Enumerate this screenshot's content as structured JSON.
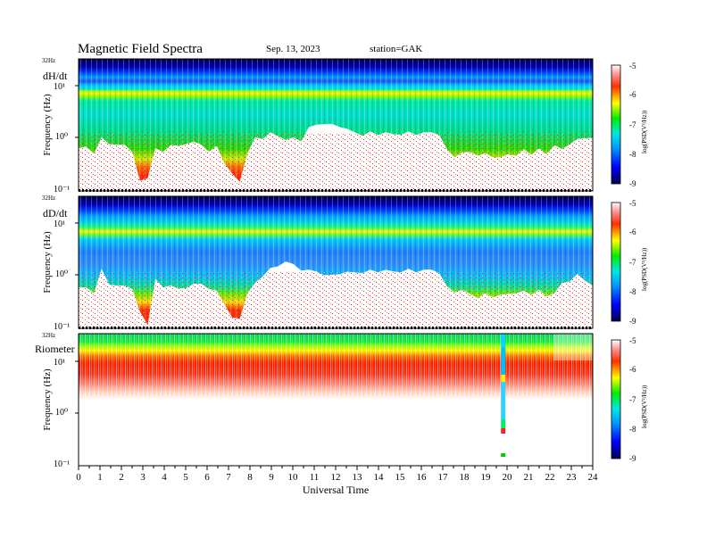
{
  "header": {
    "title": "Magnetic  Field  Spectra",
    "date": "Sep. 13, 2023",
    "station": "station=GAK"
  },
  "chart_data": [
    {
      "type": "heatmap",
      "panel_label": "dH/dt",
      "ylabel": "Frequency  (Hz)",
      "ylim": [
        0.1,
        32
      ],
      "y_scale": "log",
      "top_label": "32Hz",
      "ytick_labels": [
        "10¹",
        "10⁰",
        "10⁻¹"
      ],
      "colorbar": {
        "label": "log(PSD(V²/Hz))",
        "range": [
          -9,
          -5
        ],
        "ticks": [
          "-5",
          "-6",
          "-7",
          "-8",
          "-9"
        ]
      },
      "noise_floor_hz": [
        0.6,
        0.7,
        0.55,
        1.0,
        0.8,
        0.7,
        0.75,
        0.6,
        0.15,
        0.18,
        0.6,
        0.55,
        0.8,
        0.7,
        0.8,
        0.8,
        0.75,
        0.6,
        0.7,
        0.35,
        0.2,
        0.15,
        0.55,
        1.0,
        1.0,
        1.2,
        1.1,
        1.0,
        1.0,
        0.9,
        1.5,
        1.8,
        2.0,
        1.8,
        1.7,
        1.4,
        1.3,
        1.2,
        1.3,
        1.2,
        1.2,
        1.2,
        1.25,
        1.3,
        1.2,
        1.2,
        1.3,
        1.25,
        0.6,
        0.45,
        0.5,
        0.55,
        0.5,
        0.5,
        0.45,
        0.4,
        0.5,
        0.5,
        0.6,
        0.5,
        0.6,
        0.5,
        0.8,
        0.6,
        0.8,
        0.9,
        1.0,
        1.1
      ]
    },
    {
      "type": "heatmap",
      "panel_label": "dD/dt",
      "ylabel": "Frequency  (Hz)",
      "ylim": [
        0.1,
        32
      ],
      "y_scale": "log",
      "top_label": "32Hz",
      "ytick_labels": [
        "10¹",
        "10⁰",
        "10⁻¹"
      ],
      "colorbar": {
        "label": "log(PSD(V²/Hz))",
        "range": [
          -9,
          -5
        ],
        "ticks": [
          "-5",
          "-6",
          "-7",
          "-8",
          "-9"
        ]
      },
      "noise_floor_hz": [
        0.55,
        0.6,
        0.5,
        1.3,
        0.7,
        0.6,
        0.65,
        0.6,
        0.2,
        0.12,
        0.8,
        0.6,
        0.7,
        0.55,
        0.6,
        0.65,
        0.7,
        0.6,
        0.5,
        0.3,
        0.15,
        0.15,
        0.5,
        0.7,
        1.0,
        1.3,
        1.5,
        2.0,
        1.6,
        1.3,
        1.2,
        1.2,
        1.1,
        1.0,
        1.1,
        1.1,
        1.15,
        1.2,
        1.25,
        1.2,
        1.2,
        1.2,
        1.25,
        1.3,
        1.2,
        1.2,
        1.3,
        1.2,
        0.6,
        0.5,
        0.5,
        0.45,
        0.4,
        0.45,
        0.4,
        0.4,
        0.45,
        0.5,
        0.5,
        0.45,
        0.5,
        0.4,
        0.5,
        0.7,
        0.8,
        1.0,
        0.8,
        0.7
      ]
    },
    {
      "type": "heatmap",
      "panel_label": "Riometer",
      "ylabel": "Frequency  (Hz)",
      "ylim": [
        0.1,
        32
      ],
      "y_scale": "log",
      "top_label": "32Hz",
      "ytick_labels": [
        "10¹",
        "10⁰",
        "10⁻¹"
      ],
      "colorbar": {
        "label": "log(PSD(V²/Hz))",
        "range": [
          -9,
          -5
        ],
        "ticks": [
          "-5",
          "-6",
          "-7",
          "-8",
          "-9"
        ]
      },
      "xlabel": "Universal  Time",
      "xlim": [
        0,
        24
      ],
      "xtick_labels": [
        "0",
        "1",
        "2",
        "3",
        "4",
        "5",
        "6",
        "7",
        "8",
        "9",
        "10",
        "11",
        "12",
        "13",
        "14",
        "15",
        "16",
        "17",
        "18",
        "19",
        "20",
        "21",
        "22",
        "23",
        "24"
      ],
      "gap_hour": 19.8
    }
  ]
}
